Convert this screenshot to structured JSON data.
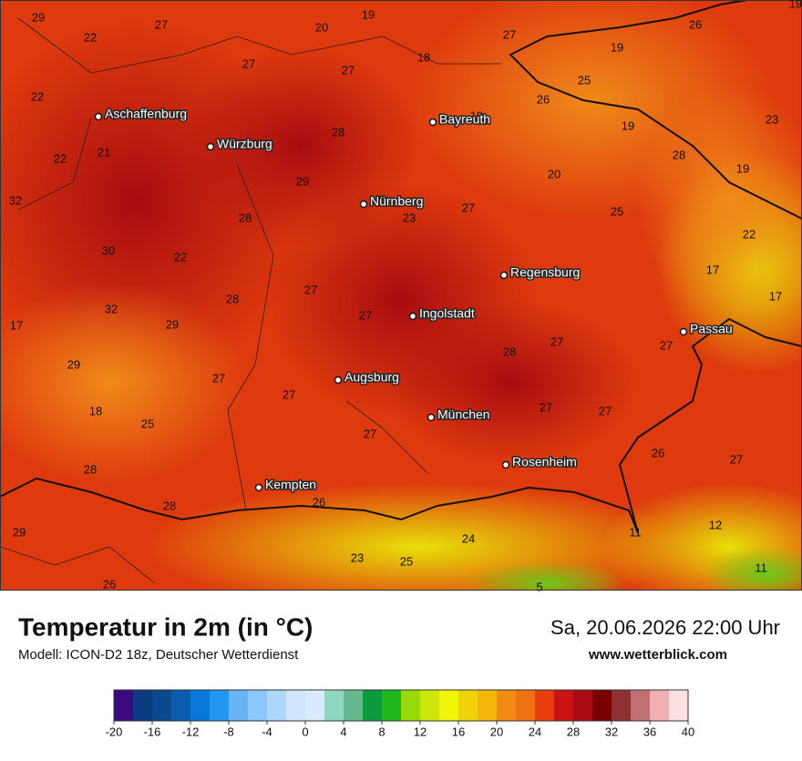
{
  "footer": {
    "title": "Temperatur in 2m (in °C)",
    "subtitle": "Modell: ICON-D2 18z, Deutscher Wetterdienst",
    "datetime": "Sa, 20.06.2026 22:00 Uhr",
    "website": "www.wetterblick.com"
  },
  "cities": [
    "Aschaffenburg",
    "Würzburg",
    "Bayreuth",
    "Nürnberg",
    "Regensburg",
    "Ingolstadt",
    "Passau",
    "Augsburg",
    "München",
    "Rosenheim",
    "Kempten"
  ],
  "temperatures": [
    29,
    27,
    19,
    20,
    22,
    27,
    26,
    19,
    18,
    19,
    27,
    27,
    25,
    22,
    26,
    19,
    23,
    19,
    28,
    21,
    22,
    28,
    19,
    20,
    29,
    32,
    27,
    23,
    28,
    25,
    22,
    30,
    22,
    17,
    27,
    28,
    17,
    32,
    27,
    17,
    29,
    28,
    27,
    27,
    29,
    27,
    27,
    18,
    25,
    27,
    27,
    27,
    26,
    27,
    28,
    28,
    26,
    29,
    24,
    11,
    12,
    23,
    25,
    11,
    26,
    5
  ],
  "colorbar": {
    "ticks": [
      -20,
      -16,
      -12,
      -8,
      -4,
      0,
      4,
      8,
      12,
      16,
      20,
      24,
      28,
      32,
      36,
      40
    ],
    "colors": [
      "#3b0a80",
      "#0a3a80",
      "#0b4a8c",
      "#0a5cb0",
      "#0a78d8",
      "#2496f0",
      "#6ab4f5",
      "#8cc6fa",
      "#afd6fb",
      "#cfe6fd",
      "#daeafd",
      "#8fd8c0",
      "#66b88c",
      "#0c9a3c",
      "#1fb81a",
      "#9ad80a",
      "#cbe80a",
      "#f0f50a",
      "#f0d20a",
      "#f5b80a",
      "#f08c14",
      "#f07014",
      "#e83c0c",
      "#c81414",
      "#aa0c14",
      "#7a0000",
      "#8c3030",
      "#c07070",
      "#f0b0b0",
      "#fde0e0"
    ]
  }
}
